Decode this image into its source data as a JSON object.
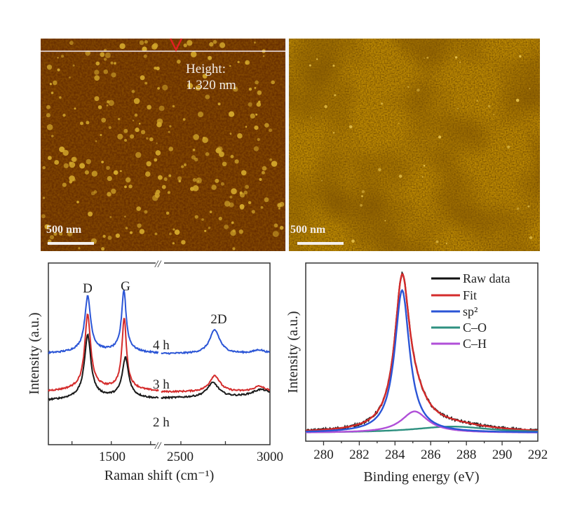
{
  "afm_left": {
    "height_label": "Height:",
    "height_value": "1.320 nm",
    "scale_bar": "500 nm",
    "colors": {
      "background": "#5e2500",
      "particles": "#d2a62a",
      "profile_line": "#f0e6f0",
      "marker": "#e02020"
    }
  },
  "afm_right": {
    "scale_bar": "500 nm",
    "colors": {
      "background": "#7a3a06",
      "highlight": "#e8c24a"
    }
  },
  "chart_data": [
    {
      "type": "line",
      "xlabel": "Raman shift (cm⁻¹)",
      "ylabel": "Intensity (a.u.)",
      "x_axis_broken": true,
      "xlim_segments": [
        [
          1100,
          1800
        ],
        [
          2390,
          3000
        ]
      ],
      "x_ticks": [
        "1500",
        "2500",
        "3000"
      ],
      "ylim": [
        0,
        100
      ],
      "peak_labels": [
        "D",
        "G",
        "2D"
      ],
      "series": [
        {
          "name": "4 h",
          "color": "#2b55d6",
          "baseline": 50,
          "peaks": [
            {
              "center": 1350,
              "height": 29,
              "hwhm": 22
            },
            {
              "center": 1580,
              "height": 32,
              "hwhm": 17
            },
            {
              "center": 2690,
              "height": 13,
              "hwhm": 35
            },
            {
              "center": 2940,
              "height": 2,
              "hwhm": 40
            }
          ]
        },
        {
          "name": "3 h",
          "color": "#d42b2b",
          "baseline": 29,
          "peaks": [
            {
              "center": 1350,
              "height": 39,
              "hwhm": 22
            },
            {
              "center": 1582,
              "height": 37,
              "hwhm": 17
            },
            {
              "center": 2690,
              "height": 9,
              "hwhm": 35
            },
            {
              "center": 2940,
              "height": 3,
              "hwhm": 40
            }
          ]
        },
        {
          "name": "2 h",
          "color": "#1a1a1a",
          "baseline": 24,
          "peaks": [
            {
              "center": 1350,
              "height": 33,
              "hwhm": 24
            },
            {
              "center": 1590,
              "height": 21,
              "hwhm": 24
            },
            {
              "center": 2680,
              "height": 8,
              "hwhm": 40
            },
            {
              "center": 2950,
              "height": 4,
              "hwhm": 60
            }
          ]
        }
      ]
    },
    {
      "type": "line",
      "xlabel": "Binding energy (eV)",
      "ylabel": "Intensity (a.u.)",
      "xlim": [
        279,
        292
      ],
      "x_ticks": [
        "280",
        "282",
        "284",
        "286",
        "288",
        "290",
        "292"
      ],
      "ylim": [
        0,
        100
      ],
      "legend_position": "top-right",
      "baseline": 4.7,
      "series": [
        {
          "name": "Raw data",
          "color": "#111111",
          "kind": "raw"
        },
        {
          "name": "Fit",
          "color": "#d42b2b",
          "kind": "fit"
        },
        {
          "name": "sp²",
          "color": "#2b55d6",
          "kind": "component",
          "center": 284.4,
          "height": 80,
          "hwhm": 0.5
        },
        {
          "name": "C–O",
          "color": "#2e9080",
          "kind": "component",
          "center": 287.2,
          "height": 3.5,
          "hwhm": 2.6
        },
        {
          "name": "C–H",
          "color": "#b04fd8",
          "kind": "component",
          "center": 285.1,
          "height": 12,
          "hwhm": 0.9
        }
      ]
    }
  ]
}
